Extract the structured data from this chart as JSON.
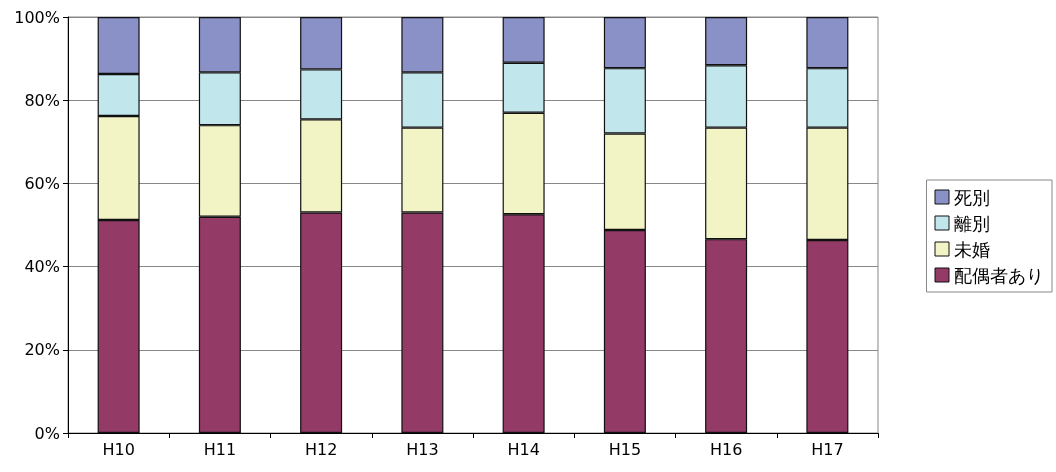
{
  "chart_data": {
    "type": "bar",
    "stacked": true,
    "categories": [
      "H10",
      "H11",
      "H12",
      "H13",
      "H14",
      "H15",
      "H16",
      "H17"
    ],
    "series": [
      {
        "name": "配偶者あり",
        "color": "#943a66",
        "values": [
          51.2,
          52,
          53,
          53,
          52.6,
          48.8,
          46.6,
          46.4
        ]
      },
      {
        "name": "未婚",
        "color": "#f2f4c6",
        "values": [
          25,
          22,
          22.4,
          20.4,
          24.4,
          23.2,
          26.8,
          27
        ]
      },
      {
        "name": "離別",
        "color": "#c1e6ec",
        "values": [
          10.1,
          12.7,
          12,
          13.3,
          12,
          15.7,
          15,
          14.3
        ]
      },
      {
        "name": "死別",
        "color": "#8991c7",
        "values": [
          13.7,
          13.3,
          12.6,
          13.3,
          11,
          12.3,
          11.6,
          12.3
        ]
      }
    ],
    "ylim": [
      0,
      100
    ],
    "yticks": [
      {
        "value": 0,
        "label": "0%"
      },
      {
        "value": 20,
        "label": "20%"
      },
      {
        "value": 40,
        "label": "40%"
      },
      {
        "value": 60,
        "label": "60%"
      },
      {
        "value": 80,
        "label": "80%"
      },
      {
        "value": 100,
        "label": "100%"
      }
    ],
    "grid": "y",
    "legend": "right"
  }
}
